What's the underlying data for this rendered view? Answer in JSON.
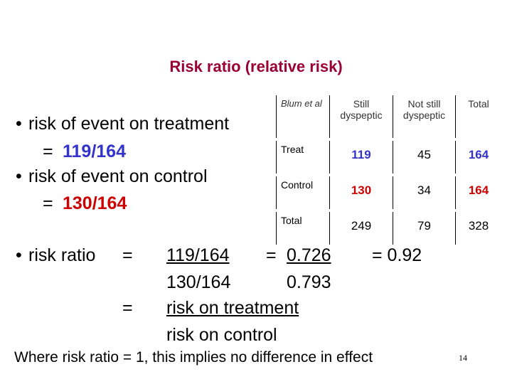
{
  "title": "Risk ratio (relative risk)",
  "bullets": [
    {
      "text": "risk of event on treatment",
      "equals": "=",
      "value": "119/164"
    },
    {
      "text": "risk of event on control",
      "equals": "=",
      "value": "130/164"
    }
  ],
  "table": {
    "header": [
      "Blum et al",
      "Still dyspeptic",
      "Not still dyspeptic",
      "Total"
    ],
    "rows": [
      [
        "Treat",
        119,
        45,
        164
      ],
      [
        "Control",
        130,
        34,
        164
      ],
      [
        "Total",
        249,
        79,
        328
      ]
    ]
  },
  "ratio": {
    "label": "risk ratio",
    "equals_1": "=",
    "numerator": "119/164",
    "denominator": "130/164",
    "result_equals": "=",
    "result_numerator": "0.726",
    "result_denominator": "0.793",
    "final": "= 0.92",
    "equals_2": "=",
    "text_numerator": "risk on treatment",
    "text_denominator": "risk on control"
  },
  "footer": "Where risk ratio = 1, this implies no difference in effect",
  "page_number": "14"
}
